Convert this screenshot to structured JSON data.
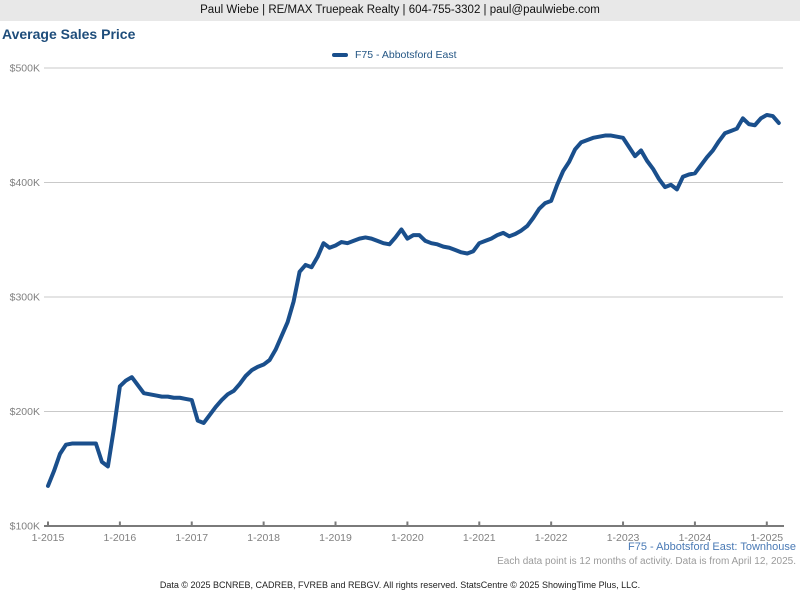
{
  "header": {
    "contact_line": "Paul Wiebe | RE/MAX Truepeak Realty | 604-755-3302 | paul@paulwiebe.com"
  },
  "title": "Average Sales Price",
  "legend": {
    "label": "F75 - Abbotsford East",
    "swatch_color": "#1a4f8c"
  },
  "footnotes": {
    "series_detail": "F75 - Abbotsford East: Townhouse",
    "data_note": "Each data point is 12 months of activity. Data is from April 12, 2025.",
    "copyright": "Data © 2025 BCNREB, CADREB, FVREB and REBGV. All rights reserved. StatsCentre © 2025 ShowingTime Plus, LLC."
  },
  "chart_data": {
    "type": "line",
    "title": "Average Sales Price",
    "xlabel": "",
    "ylabel": "",
    "units": "average sales price, thousands of dollars",
    "ylim": [
      100,
      500
    ],
    "grid": true,
    "legend_position": "top-center",
    "line_color": "#1a4f8c",
    "grid_color": "#c9c9c9",
    "axis_color": "#7a7a7a",
    "tick_label_color": "#808080",
    "y_tick_values": [
      100,
      200,
      300,
      400,
      500
    ],
    "y_tick_labels": [
      "$100K",
      "$200K",
      "$300K",
      "$400K",
      "$500K"
    ],
    "x_tick_labels": [
      "1-2015",
      "1-2016",
      "1-2017",
      "1-2018",
      "1-2019",
      "1-2020",
      "1-2021",
      "1-2022",
      "1-2023",
      "1-2024",
      "1-2025"
    ],
    "series": [
      {
        "name": "F75 - Abbotsford East",
        "start": "2015-01",
        "interval": "monthly",
        "values_thousands": [
          135,
          148,
          163,
          171,
          172,
          172,
          172,
          172,
          172,
          156,
          152,
          185,
          222,
          227,
          230,
          223,
          216,
          215,
          214,
          213,
          213,
          212,
          212,
          211,
          210,
          192,
          190,
          197,
          204,
          210,
          215,
          218,
          224,
          231,
          236,
          239,
          241,
          245,
          254,
          266,
          278,
          296,
          322,
          328,
          326,
          335,
          347,
          343,
          345,
          348,
          347,
          349,
          351,
          352,
          351,
          349,
          347,
          346,
          352,
          359,
          351,
          354,
          354,
          349,
          347,
          346,
          344,
          343,
          341,
          339,
          338,
          340,
          347,
          349,
          351,
          354,
          356,
          353,
          355,
          358,
          362,
          369,
          377,
          382,
          384,
          398,
          410,
          418,
          429,
          435,
          437,
          439,
          440,
          441,
          441,
          440,
          439,
          431,
          423,
          428,
          419,
          412,
          403,
          396,
          398,
          394,
          405,
          407,
          408,
          415,
          422,
          428,
          436,
          443,
          445,
          447,
          456,
          451,
          450,
          456,
          459,
          458,
          452
        ]
      }
    ]
  }
}
